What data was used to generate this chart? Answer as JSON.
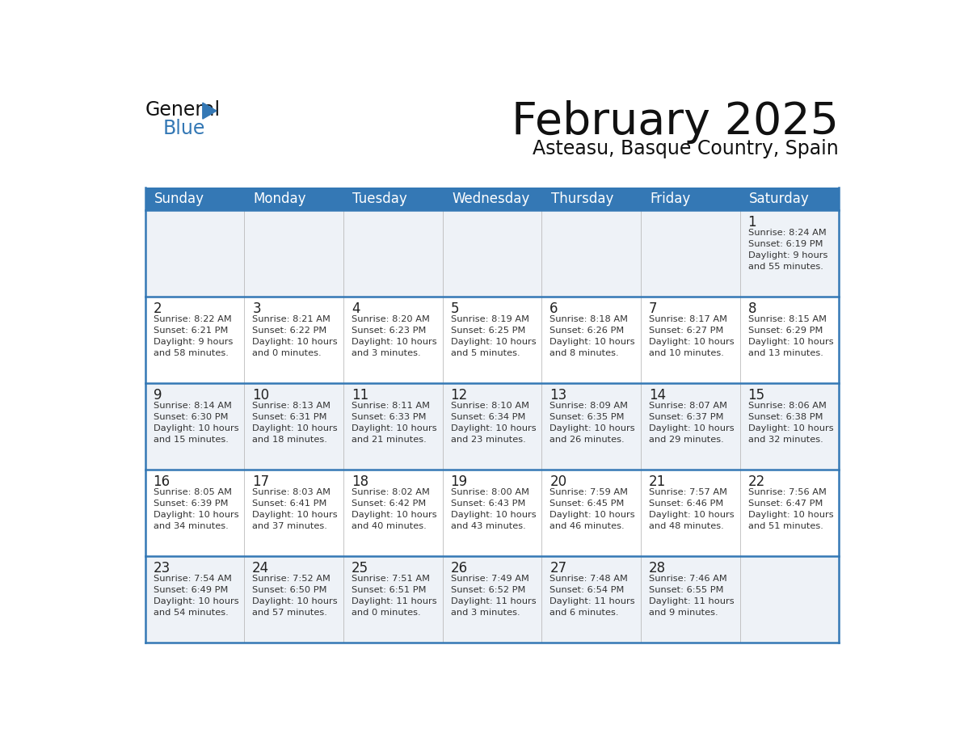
{
  "title": "February 2025",
  "subtitle": "Asteasu, Basque Country, Spain",
  "days_of_week": [
    "Sunday",
    "Monday",
    "Tuesday",
    "Wednesday",
    "Thursday",
    "Friday",
    "Saturday"
  ],
  "header_bg": "#3478b5",
  "header_text": "#ffffff",
  "row_bg_light": "#eef2f7",
  "row_bg_white": "#ffffff",
  "cell_text_color": "#333333",
  "date_text_color": "#222222",
  "border_color": "#3478b5",
  "title_color": "#111111",
  "subtitle_color": "#111111",
  "weeks": [
    [
      {
        "day": null,
        "info": null
      },
      {
        "day": null,
        "info": null
      },
      {
        "day": null,
        "info": null
      },
      {
        "day": null,
        "info": null
      },
      {
        "day": null,
        "info": null
      },
      {
        "day": null,
        "info": null
      },
      {
        "day": 1,
        "info": "Sunrise: 8:24 AM\nSunset: 6:19 PM\nDaylight: 9 hours\nand 55 minutes."
      }
    ],
    [
      {
        "day": 2,
        "info": "Sunrise: 8:22 AM\nSunset: 6:21 PM\nDaylight: 9 hours\nand 58 minutes."
      },
      {
        "day": 3,
        "info": "Sunrise: 8:21 AM\nSunset: 6:22 PM\nDaylight: 10 hours\nand 0 minutes."
      },
      {
        "day": 4,
        "info": "Sunrise: 8:20 AM\nSunset: 6:23 PM\nDaylight: 10 hours\nand 3 minutes."
      },
      {
        "day": 5,
        "info": "Sunrise: 8:19 AM\nSunset: 6:25 PM\nDaylight: 10 hours\nand 5 minutes."
      },
      {
        "day": 6,
        "info": "Sunrise: 8:18 AM\nSunset: 6:26 PM\nDaylight: 10 hours\nand 8 minutes."
      },
      {
        "day": 7,
        "info": "Sunrise: 8:17 AM\nSunset: 6:27 PM\nDaylight: 10 hours\nand 10 minutes."
      },
      {
        "day": 8,
        "info": "Sunrise: 8:15 AM\nSunset: 6:29 PM\nDaylight: 10 hours\nand 13 minutes."
      }
    ],
    [
      {
        "day": 9,
        "info": "Sunrise: 8:14 AM\nSunset: 6:30 PM\nDaylight: 10 hours\nand 15 minutes."
      },
      {
        "day": 10,
        "info": "Sunrise: 8:13 AM\nSunset: 6:31 PM\nDaylight: 10 hours\nand 18 minutes."
      },
      {
        "day": 11,
        "info": "Sunrise: 8:11 AM\nSunset: 6:33 PM\nDaylight: 10 hours\nand 21 minutes."
      },
      {
        "day": 12,
        "info": "Sunrise: 8:10 AM\nSunset: 6:34 PM\nDaylight: 10 hours\nand 23 minutes."
      },
      {
        "day": 13,
        "info": "Sunrise: 8:09 AM\nSunset: 6:35 PM\nDaylight: 10 hours\nand 26 minutes."
      },
      {
        "day": 14,
        "info": "Sunrise: 8:07 AM\nSunset: 6:37 PM\nDaylight: 10 hours\nand 29 minutes."
      },
      {
        "day": 15,
        "info": "Sunrise: 8:06 AM\nSunset: 6:38 PM\nDaylight: 10 hours\nand 32 minutes."
      }
    ],
    [
      {
        "day": 16,
        "info": "Sunrise: 8:05 AM\nSunset: 6:39 PM\nDaylight: 10 hours\nand 34 minutes."
      },
      {
        "day": 17,
        "info": "Sunrise: 8:03 AM\nSunset: 6:41 PM\nDaylight: 10 hours\nand 37 minutes."
      },
      {
        "day": 18,
        "info": "Sunrise: 8:02 AM\nSunset: 6:42 PM\nDaylight: 10 hours\nand 40 minutes."
      },
      {
        "day": 19,
        "info": "Sunrise: 8:00 AM\nSunset: 6:43 PM\nDaylight: 10 hours\nand 43 minutes."
      },
      {
        "day": 20,
        "info": "Sunrise: 7:59 AM\nSunset: 6:45 PM\nDaylight: 10 hours\nand 46 minutes."
      },
      {
        "day": 21,
        "info": "Sunrise: 7:57 AM\nSunset: 6:46 PM\nDaylight: 10 hours\nand 48 minutes."
      },
      {
        "day": 22,
        "info": "Sunrise: 7:56 AM\nSunset: 6:47 PM\nDaylight: 10 hours\nand 51 minutes."
      }
    ],
    [
      {
        "day": 23,
        "info": "Sunrise: 7:54 AM\nSunset: 6:49 PM\nDaylight: 10 hours\nand 54 minutes."
      },
      {
        "day": 24,
        "info": "Sunrise: 7:52 AM\nSunset: 6:50 PM\nDaylight: 10 hours\nand 57 minutes."
      },
      {
        "day": 25,
        "info": "Sunrise: 7:51 AM\nSunset: 6:51 PM\nDaylight: 11 hours\nand 0 minutes."
      },
      {
        "day": 26,
        "info": "Sunrise: 7:49 AM\nSunset: 6:52 PM\nDaylight: 11 hours\nand 3 minutes."
      },
      {
        "day": 27,
        "info": "Sunrise: 7:48 AM\nSunset: 6:54 PM\nDaylight: 11 hours\nand 6 minutes."
      },
      {
        "day": 28,
        "info": "Sunrise: 7:46 AM\nSunset: 6:55 PM\nDaylight: 11 hours\nand 9 minutes."
      },
      {
        "day": null,
        "info": null
      }
    ]
  ]
}
